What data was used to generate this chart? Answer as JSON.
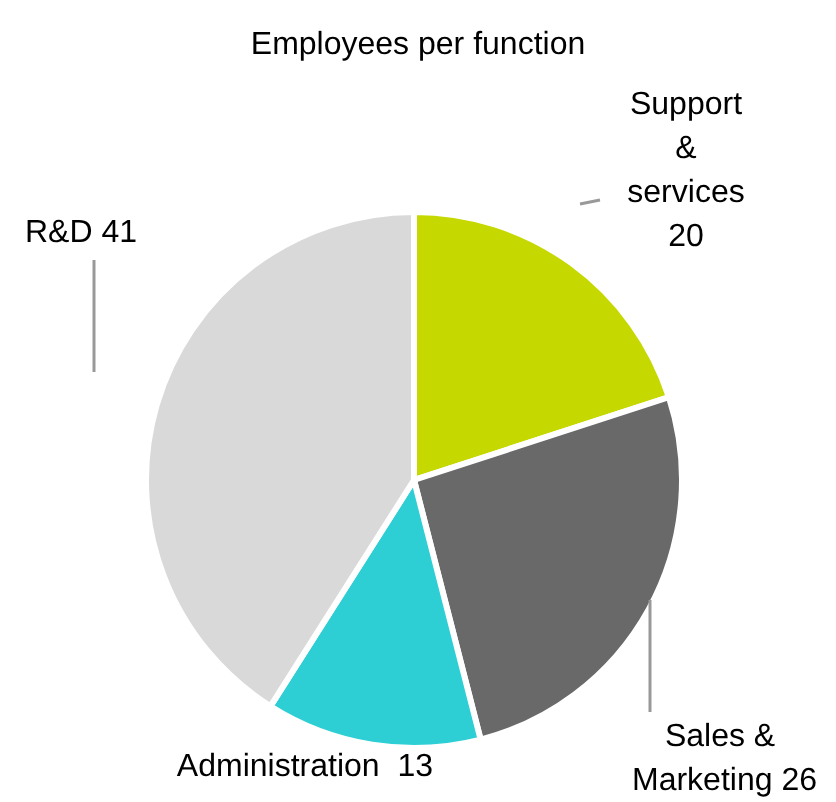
{
  "chart_data": {
    "type": "pie",
    "title": "Employees per function",
    "categories": [
      "Support & services",
      "Sales & Marketing",
      "Administration",
      "R&D"
    ],
    "values": [
      20,
      26,
      13,
      41
    ],
    "colors": [
      "#c5d800",
      "#696969",
      "#2ecfd4",
      "#d9d9d9"
    ],
    "data_labels": true
  }
}
